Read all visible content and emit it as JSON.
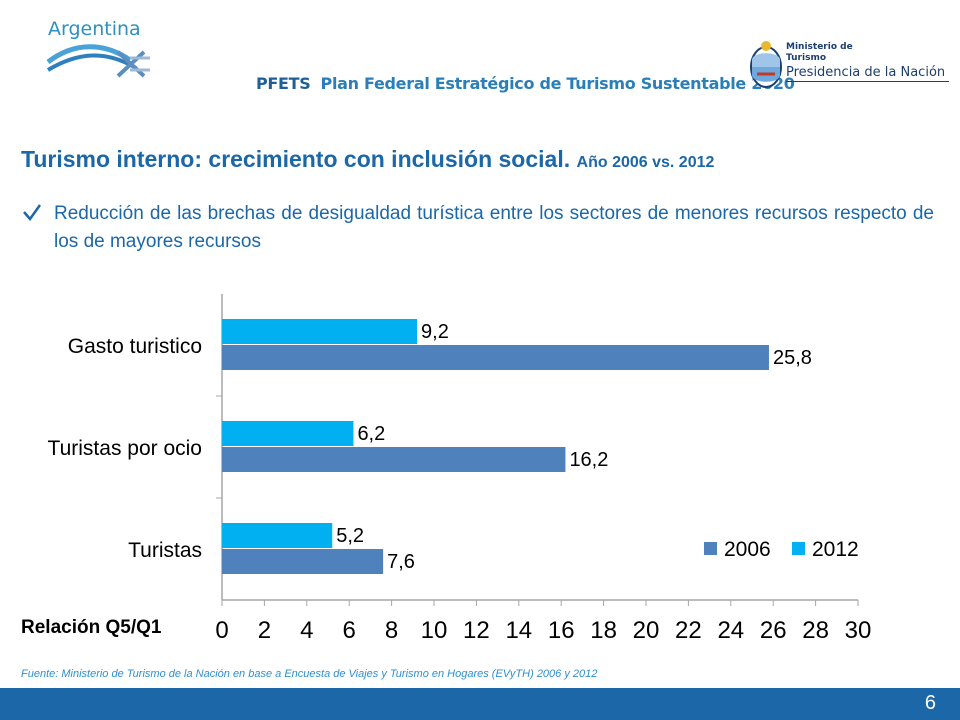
{
  "header": {
    "logo_text": "Argentina",
    "plan_lead": "PFETS",
    "plan_name": "Plan Federal Estratégico de Turismo Sustentable 2020",
    "ministry_line1": "Ministerio de",
    "ministry_line2": "Turismo",
    "ministry_line3": "Presidencia de la Nación"
  },
  "slide": {
    "title_main": "Turismo interno: crecimiento con inclusión social.",
    "title_sub": "Año 2006 vs. 2012",
    "bullet": "Reducción de las brechas de desigualdad turística entre los sectores de menores recursos respecto de los de mayores recursos",
    "footnote": "Fuente: Ministerio de Turismo de la Nación en base a Encuesta de Viajes y Turismo en Hogares (EVyTH) 2006 y 2012",
    "page_number": "6"
  },
  "colors": {
    "accent": "#1b67a8",
    "series_2006": "#4f81bd",
    "series_2012": "#00b0f0"
  },
  "chart_data": {
    "type": "bar",
    "orientation": "horizontal",
    "categories": [
      "Gasto turistico",
      "Turistas por ocio",
      "Turistas"
    ],
    "series": [
      {
        "name": "2006",
        "values": [
          25.8,
          16.2,
          7.6
        ],
        "labels": [
          "25,8",
          "16,2",
          "7,6"
        ]
      },
      {
        "name": "2012",
        "values": [
          9.2,
          6.2,
          5.2
        ],
        "labels": [
          "9,2",
          "6,2",
          "5,2"
        ]
      }
    ],
    "xlabel": "Relación Q5/Q1",
    "xlim": [
      0,
      30
    ],
    "xticks": [
      "0",
      "2",
      "4",
      "6",
      "8",
      "10",
      "12",
      "14",
      "16",
      "18",
      "20",
      "22",
      "24",
      "26",
      "28",
      "30"
    ],
    "legend": "bottom-right",
    "grid": false
  }
}
